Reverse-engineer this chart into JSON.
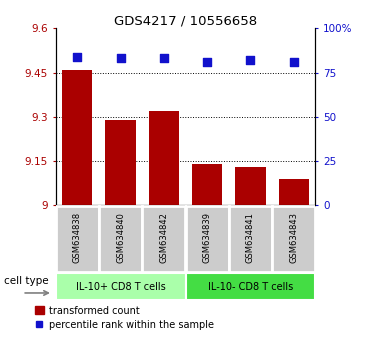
{
  "title": "GDS4217 / 10556658",
  "samples": [
    "GSM634838",
    "GSM634840",
    "GSM634842",
    "GSM634839",
    "GSM634841",
    "GSM634843"
  ],
  "bar_values": [
    9.46,
    9.29,
    9.32,
    9.14,
    9.13,
    9.09
  ],
  "percentile_values": [
    84,
    83,
    83,
    81,
    82,
    81
  ],
  "bar_color": "#aa0000",
  "dot_color": "#1111cc",
  "ylim_left": [
    9.0,
    9.6
  ],
  "yticks_left": [
    9.0,
    9.15,
    9.3,
    9.45,
    9.6
  ],
  "ytick_labels_left": [
    "9",
    "9.15",
    "9.3",
    "9.45",
    "9.6"
  ],
  "ylim_right": [
    0,
    100
  ],
  "yticks_right": [
    0,
    25,
    50,
    75,
    100
  ],
  "ytick_labels_right": [
    "0",
    "25",
    "50",
    "75",
    "100%"
  ],
  "group_labels": [
    "IL-10+ CD8 T cells",
    "IL-10- CD8 T cells"
  ],
  "group_ranges": [
    [
      0,
      3
    ],
    [
      3,
      6
    ]
  ],
  "group_color_light": "#aaffaa",
  "group_color_dark": "#44dd44",
  "cell_type_label": "cell type",
  "legend_bar_label": "transformed count",
  "legend_dot_label": "percentile rank within the sample",
  "bar_width": 0.7,
  "dot_size": 40,
  "grid_color": "black",
  "label_box_color": "#cccccc",
  "label_box_edgecolor": "white"
}
